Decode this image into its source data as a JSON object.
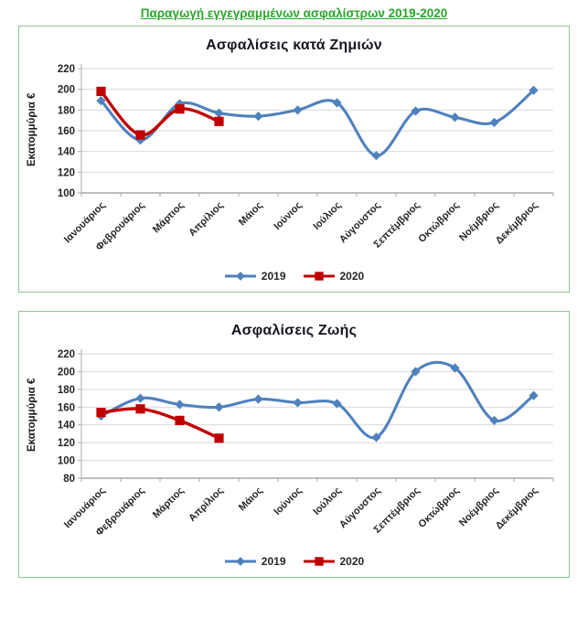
{
  "page": {
    "title": "Παραγωγή εγγεγραμμένων ασφαλίστρων 2019-2020"
  },
  "colors": {
    "page_title_green": "#2BA52B",
    "panel_border_green": "#8FC98F",
    "series_2019_blue": "#4F81BD",
    "series_2020_red": "#C00000",
    "gridline_gray": "#D9D9D9",
    "axis_gray": "#A8A8A8",
    "label_text": "#262626",
    "chart_title_text": "#15151f"
  },
  "chart_data": [
    {
      "type": "line",
      "title": "Ασφαλίσεις κατά Ζημιών",
      "ylabel": "Εκατομμύρια €",
      "ylim": [
        100,
        220
      ],
      "ytick_step": 20,
      "grid": true,
      "legend_position": "bottom",
      "line_style": "smooth",
      "categories": [
        "Ιανουάριος",
        "Φεβρουάριος",
        "Μάρτιος",
        "Απρίλιος",
        "Μάιος",
        "Ιούνιος",
        "Ιούλιος",
        "Αύγουστος",
        "Σεπτέμβριος",
        "Οκτώβριος",
        "Νοέμβριος",
        "Δεκέμβριος"
      ],
      "series": [
        {
          "name": "2019",
          "color": "#4F81BD",
          "marker": "diamond",
          "values": [
            189,
            151,
            186,
            177,
            174,
            180,
            187,
            136,
            179,
            173,
            168,
            199
          ]
        },
        {
          "name": "2020",
          "color": "#C00000",
          "marker": "square",
          "values": [
            198,
            156,
            181,
            169
          ]
        }
      ]
    },
    {
      "type": "line",
      "title": "Ασφαλίσεις Ζωής",
      "ylabel": "Εκατομμύρια €",
      "ylim": [
        80,
        220
      ],
      "ytick_step": 20,
      "grid": true,
      "legend_position": "bottom",
      "line_style": "smooth",
      "categories": [
        "Ιανουάριος",
        "Φεβρουάριος",
        "Μάρτιος",
        "Απρίλιος",
        "Μάιος",
        "Ιούνιος",
        "Ιούλιος",
        "Αύγουστος",
        "Σεπτέμβριος",
        "Οκτώβριος",
        "Νοέμβριος",
        "Δεκέμβριος"
      ],
      "series": [
        {
          "name": "2019",
          "color": "#4F81BD",
          "marker": "diamond",
          "values": [
            150,
            170,
            163,
            160,
            169,
            165,
            164,
            126,
            200,
            204,
            145,
            173
          ]
        },
        {
          "name": "2020",
          "color": "#C00000",
          "marker": "square",
          "values": [
            154,
            158,
            145,
            125
          ]
        }
      ]
    }
  ]
}
